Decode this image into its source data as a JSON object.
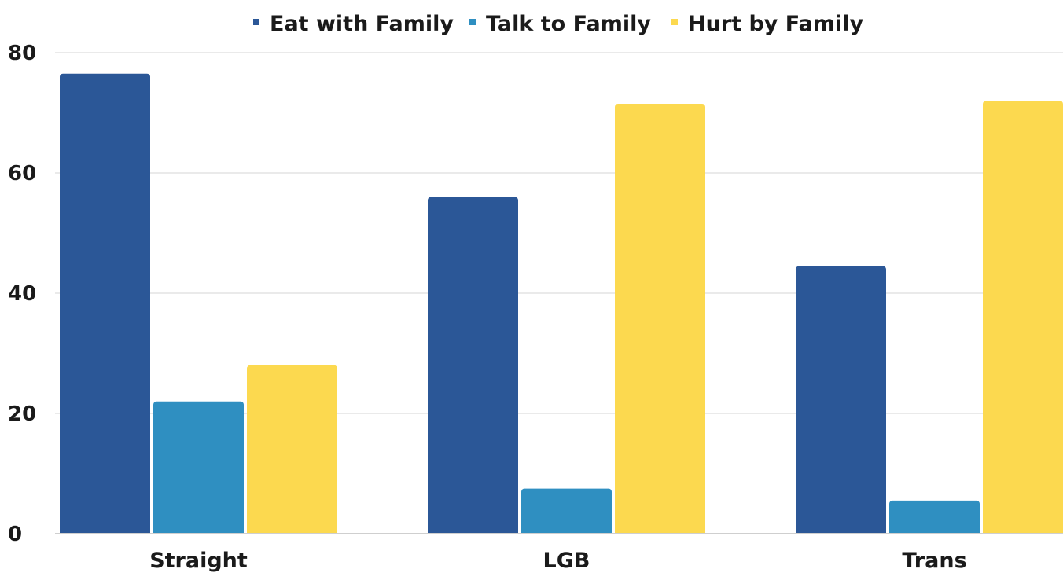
{
  "chart_data": {
    "type": "bar",
    "title": "",
    "xlabel": "",
    "ylabel": "",
    "categories": [
      "Straight",
      "LGB",
      "Trans"
    ],
    "series": [
      {
        "name": "Eat with Family",
        "values": [
          76.5,
          56,
          44.5
        ],
        "color": "#2b5797"
      },
      {
        "name": "Talk to Family",
        "values": [
          22,
          7.5,
          5.5
        ],
        "color": "#2f8fc1"
      },
      {
        "name": "Hurt by Family",
        "values": [
          28,
          71.5,
          72
        ],
        "color": "#fcd94f"
      }
    ],
    "ylim": [
      0,
      80
    ],
    "yticks": [
      0,
      20,
      40,
      60,
      80
    ],
    "grid": true,
    "legend": "top-center"
  }
}
